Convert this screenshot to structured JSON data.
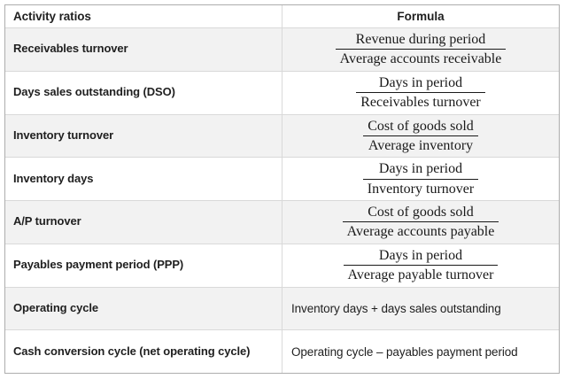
{
  "table": {
    "headers": {
      "ratio": "Activity ratios",
      "formula": "Formula"
    },
    "rows": [
      {
        "ratio": "Receivables turnover",
        "formula_type": "fraction",
        "numerator": "Revenue during period",
        "denominator": "Average accounts receivable",
        "shaded": true
      },
      {
        "ratio": "Days sales outstanding (DSO)",
        "formula_type": "fraction",
        "numerator": "Days in period",
        "denominator": "Receivables turnover",
        "shaded": false
      },
      {
        "ratio": "Inventory turnover",
        "formula_type": "fraction",
        "numerator": "Cost of goods sold",
        "denominator": "Average inventory",
        "shaded": true
      },
      {
        "ratio": "Inventory days",
        "formula_type": "fraction",
        "numerator": "Days in period",
        "denominator": "Inventory turnover",
        "shaded": false
      },
      {
        "ratio": "A/P turnover",
        "formula_type": "fraction",
        "numerator": "Cost of goods sold",
        "denominator": "Average accounts payable",
        "shaded": true
      },
      {
        "ratio": "Payables payment period (PPP)",
        "formula_type": "fraction",
        "numerator": "Days in period",
        "denominator": "Average payable turnover",
        "shaded": false
      },
      {
        "ratio": "Operating cycle",
        "formula_type": "text",
        "formula": "Inventory days + days sales outstanding",
        "shaded": true
      },
      {
        "ratio": "Cash conversion cycle (net operating cycle)",
        "formula_type": "text",
        "formula": "Operating cycle – payables payment period",
        "shaded": false
      }
    ],
    "colors": {
      "shaded_row": "#f2f2f2",
      "border_outer": "#adadad",
      "border_inner": "#d9d9d9",
      "text": "#1f1f1f"
    }
  }
}
